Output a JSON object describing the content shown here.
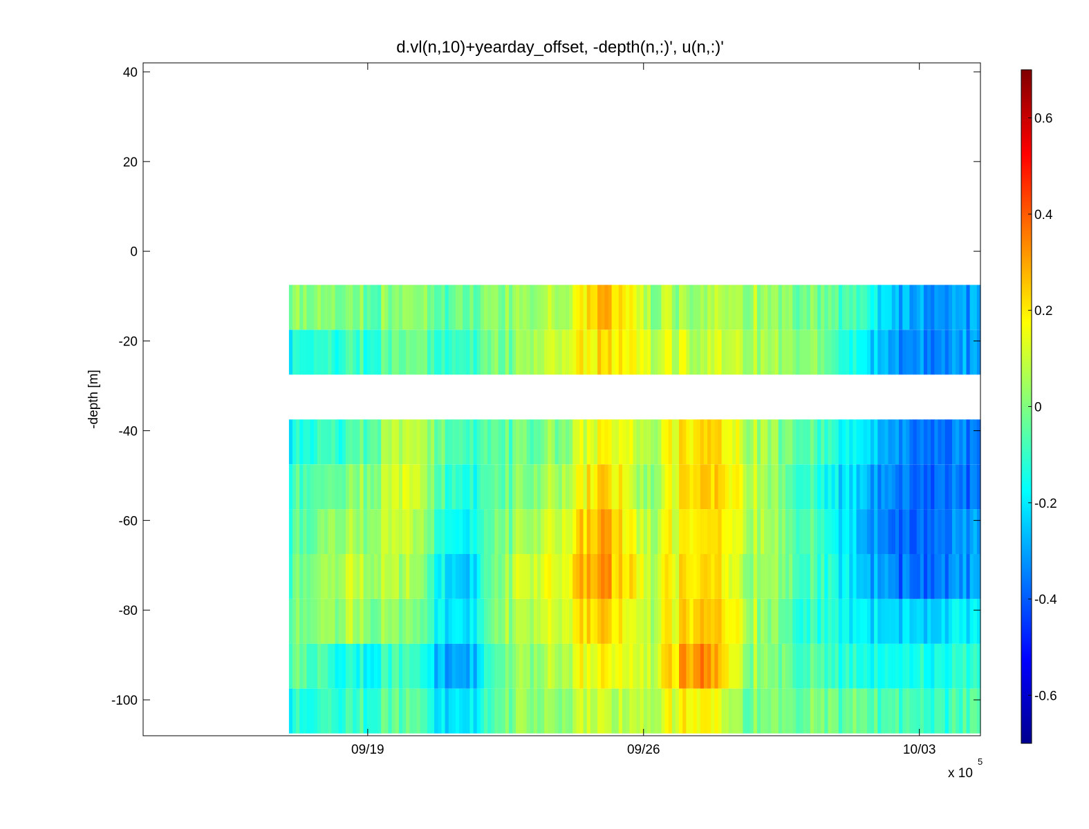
{
  "chart_data": {
    "type": "heatmap",
    "title": "d.vl(n,10)+yearday_offset, -depth(n,:)', u(n,:)'",
    "xlabel": "",
    "ylabel": "-depth [m]",
    "x_exponent_label": "x 10",
    "x_exponent_power": "5",
    "x_ticks": [
      "09/19",
      "09/26",
      "10/03"
    ],
    "x_tick_days": [
      19,
      26,
      33
    ],
    "xlim_days": [
      13.3,
      34.55
    ],
    "data_start_day": 17.0,
    "data_end_day": 34.55,
    "y_ticks": [
      40,
      20,
      0,
      -20,
      -40,
      -60,
      -80,
      -100
    ],
    "ylim": [
      -108,
      42
    ],
    "colorbar": {
      "colormap": "jet",
      "clim": [
        -0.7,
        0.7
      ],
      "ticks": [
        0.6,
        0.4,
        0.2,
        0,
        -0.2,
        -0.4,
        -0.6
      ]
    },
    "depth_bins": [
      -12.5,
      -22.5,
      -42.5,
      -52.5,
      -62.5,
      -72.5,
      -82.5,
      -92.5,
      -102.5
    ],
    "u_profiles_by_day": [
      {
        "day": 17.0,
        "u": [
          0.0,
          -0.15,
          -0.15,
          -0.1,
          -0.08,
          -0.05,
          -0.02,
          -0.05,
          -0.15
        ]
      },
      {
        "day": 18.5,
        "u": [
          0.0,
          -0.1,
          -0.08,
          0.0,
          0.05,
          0.08,
          0.05,
          -0.15,
          -0.1
        ]
      },
      {
        "day": 20.0,
        "u": [
          0.0,
          -0.05,
          0.1,
          0.12,
          0.08,
          0.05,
          0.0,
          -0.1,
          -0.05
        ]
      },
      {
        "day": 21.3,
        "u": [
          -0.05,
          -0.12,
          -0.1,
          -0.15,
          -0.2,
          -0.3,
          -0.25,
          -0.35,
          -0.25
        ]
      },
      {
        "day": 22.5,
        "u": [
          0.0,
          0.0,
          -0.05,
          -0.05,
          0.0,
          0.05,
          0.05,
          0.0,
          0.0
        ]
      },
      {
        "day": 24.0,
        "u": [
          0.1,
          0.15,
          0.05,
          0.1,
          0.15,
          0.2,
          0.15,
          0.1,
          0.05
        ]
      },
      {
        "day": 25.0,
        "u": [
          0.3,
          0.22,
          0.2,
          0.25,
          0.3,
          0.32,
          0.25,
          0.18,
          0.1
        ]
      },
      {
        "day": 26.0,
        "u": [
          0.05,
          0.1,
          0.05,
          0.0,
          0.05,
          0.1,
          0.05,
          0.08,
          0.05
        ]
      },
      {
        "day": 27.4,
        "u": [
          0.05,
          0.1,
          0.25,
          0.28,
          0.25,
          0.25,
          0.3,
          0.38,
          0.22
        ]
      },
      {
        "day": 28.5,
        "u": [
          0.05,
          0.08,
          0.1,
          0.12,
          0.1,
          0.08,
          0.1,
          0.05,
          0.0
        ]
      },
      {
        "day": 30.0,
        "u": [
          0.0,
          0.05,
          -0.05,
          -0.1,
          -0.05,
          -0.05,
          -0.1,
          -0.05,
          0.0
        ]
      },
      {
        "day": 31.5,
        "u": [
          -0.1,
          -0.2,
          -0.2,
          -0.25,
          -0.28,
          -0.25,
          -0.2,
          -0.15,
          -0.05
        ]
      },
      {
        "day": 32.5,
        "u": [
          -0.3,
          -0.35,
          -0.35,
          -0.38,
          -0.4,
          -0.38,
          -0.25,
          -0.15,
          -0.08
        ]
      },
      {
        "day": 34.5,
        "u": [
          -0.3,
          -0.3,
          -0.35,
          -0.35,
          -0.3,
          -0.3,
          -0.18,
          -0.12,
          -0.08
        ]
      }
    ]
  }
}
